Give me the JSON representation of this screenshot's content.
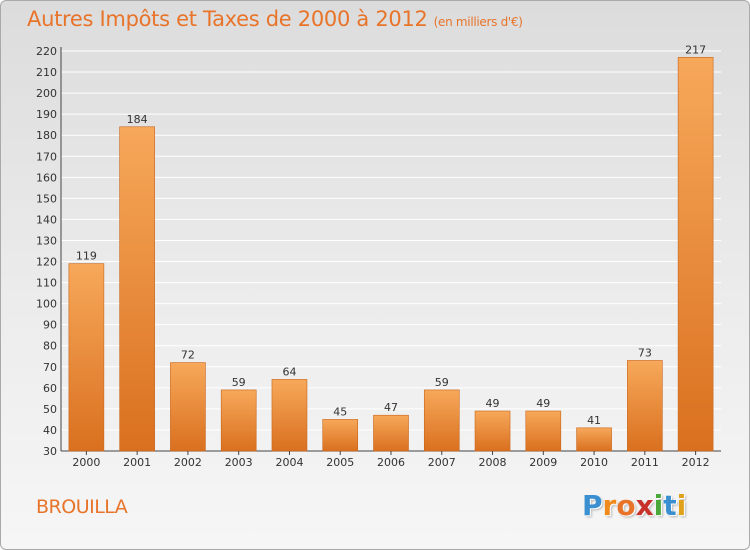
{
  "title": {
    "main": "Autres Impôts et Taxes de 2000 à 2012",
    "unit": "(en milliers d'€)"
  },
  "commune": "BROUILLA",
  "logo": {
    "text": "Proxiti",
    "colors": [
      "#3a8fd1",
      "#f08a1c",
      "#e8742a",
      "#c7322b",
      "#4aa83a",
      "#3a8fd1",
      "#e0a21b"
    ]
  },
  "colors": {
    "accent": "#e8742a",
    "bar_light": "#f7a85a",
    "bar_dark": "#d9701f",
    "grid": "#ffffff",
    "axis": "#444444"
  },
  "chart_data": {
    "type": "bar",
    "categories": [
      "2000",
      "2001",
      "2002",
      "2003",
      "2004",
      "2005",
      "2006",
      "2007",
      "2008",
      "2009",
      "2010",
      "2011",
      "2012"
    ],
    "values": [
      119,
      184,
      72,
      59,
      64,
      45,
      47,
      59,
      49,
      49,
      41,
      73,
      217
    ],
    "title": "Autres Impôts et Taxes de 2000 à 2012",
    "subtitle": "(en milliers d'€)",
    "ylim": [
      30,
      220
    ],
    "yticks": [
      30,
      40,
      50,
      60,
      70,
      80,
      90,
      100,
      110,
      120,
      130,
      140,
      150,
      160,
      170,
      180,
      190,
      200,
      210,
      220
    ],
    "grid": true,
    "data_labels": true
  }
}
